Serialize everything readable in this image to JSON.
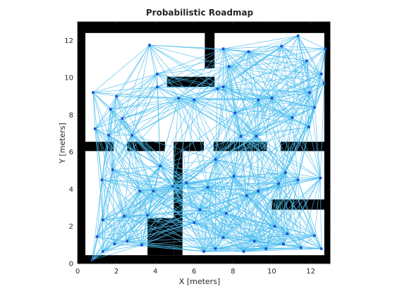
{
  "chart_data": {
    "type": "scatter",
    "title": "Probabilistic Roadmap",
    "xlabel": "X [meters]",
    "ylabel": "Y [meters]",
    "xlim": [
      0,
      13
    ],
    "ylim": [
      0,
      13
    ],
    "xticks": [
      0,
      2,
      4,
      6,
      8,
      10,
      12
    ],
    "yticks": [
      0,
      2,
      4,
      6,
      8,
      10,
      12
    ],
    "grid": false,
    "legend": "none",
    "colors": {
      "edges": "#4dbeee",
      "nodes": "#1f4fd1",
      "obstacles": "#000000",
      "axes": "#262626"
    },
    "obstacles": [
      {
        "x": 0.0,
        "y": 12.4,
        "w": 13.0,
        "h": 0.6
      },
      {
        "x": 0.0,
        "y": 0.0,
        "w": 0.4,
        "h": 13.0
      },
      {
        "x": 12.7,
        "y": 0.0,
        "w": 0.3,
        "h": 13.0
      },
      {
        "x": 0.0,
        "y": 0.0,
        "w": 13.0,
        "h": 0.45
      },
      {
        "x": 6.55,
        "y": 10.5,
        "w": 0.5,
        "h": 2.0
      },
      {
        "x": 4.6,
        "y": 9.5,
        "w": 2.45,
        "h": 0.55
      },
      {
        "x": 0.4,
        "y": 6.05,
        "w": 1.45,
        "h": 0.5
      },
      {
        "x": 2.55,
        "y": 6.05,
        "w": 1.95,
        "h": 0.5
      },
      {
        "x": 4.95,
        "y": 6.05,
        "w": 1.55,
        "h": 0.5
      },
      {
        "x": 7.0,
        "y": 6.05,
        "w": 2.75,
        "h": 0.5
      },
      {
        "x": 10.45,
        "y": 6.05,
        "w": 2.3,
        "h": 0.5
      },
      {
        "x": 4.95,
        "y": 0.45,
        "w": 0.45,
        "h": 5.6
      },
      {
        "x": 3.6,
        "y": 0.45,
        "w": 1.35,
        "h": 2.0
      },
      {
        "x": 10.0,
        "y": 2.9,
        "w": 2.75,
        "h": 0.55
      }
    ],
    "nodes": [
      [
        3.7,
        11.75
      ],
      [
        7.5,
        11.55
      ],
      [
        11.35,
        12.25
      ],
      [
        12.75,
        11.55
      ],
      [
        0.8,
        9.2
      ],
      [
        4.1,
        9.5
      ],
      [
        4.1,
        10.2
      ],
      [
        2.0,
        9.0
      ],
      [
        1.7,
        8.3
      ],
      [
        2.3,
        7.8
      ],
      [
        1.6,
        6.9
      ],
      [
        0.9,
        7.25
      ],
      [
        5.2,
        8.9
      ],
      [
        6.0,
        8.8
      ],
      [
        7.2,
        9.4
      ],
      [
        8.1,
        8.1
      ],
      [
        9.3,
        8.8
      ],
      [
        10.0,
        8.9
      ],
      [
        8.4,
        6.85
      ],
      [
        9.2,
        6.85
      ],
      [
        11.05,
        7.85
      ],
      [
        11.9,
        7.35
      ],
      [
        12.2,
        8.4
      ],
      [
        12.7,
        9.7
      ],
      [
        11.95,
        9.2
      ],
      [
        12.55,
        10.2
      ],
      [
        11.8,
        10.9
      ],
      [
        10.5,
        11.7
      ],
      [
        8.8,
        11.4
      ],
      [
        7.8,
        10.6
      ],
      [
        7.5,
        9.5
      ],
      [
        2.8,
        6.9
      ],
      [
        1.8,
        5.05
      ],
      [
        1.25,
        4.5
      ],
      [
        1.3,
        2.35
      ],
      [
        1.0,
        1.45
      ],
      [
        0.75,
        0.2
      ],
      [
        1.3,
        0.65
      ],
      [
        1.9,
        1.05
      ],
      [
        2.4,
        2.55
      ],
      [
        2.55,
        1.2
      ],
      [
        3.3,
        1.0
      ],
      [
        3.6,
        2.6
      ],
      [
        3.2,
        3.9
      ],
      [
        3.9,
        3.9
      ],
      [
        4.25,
        5.25
      ],
      [
        4.9,
        4.15
      ],
      [
        5.6,
        4.35
      ],
      [
        6.7,
        4.1
      ],
      [
        7.1,
        5.6
      ],
      [
        8.05,
        4.7
      ],
      [
        8.7,
        3.65
      ],
      [
        9.3,
        3.9
      ],
      [
        10.15,
        2.0
      ],
      [
        10.35,
        4.3
      ],
      [
        10.7,
        4.9
      ],
      [
        11.35,
        4.5
      ],
      [
        12.5,
        4.6
      ],
      [
        12.2,
        1.5
      ],
      [
        12.55,
        0.8
      ],
      [
        11.5,
        0.85
      ],
      [
        10.6,
        1.05
      ],
      [
        9.7,
        0.8
      ],
      [
        8.55,
        0.65
      ],
      [
        7.5,
        1.4
      ],
      [
        7.1,
        0.8
      ],
      [
        6.5,
        0.65
      ],
      [
        6.0,
        2.2
      ],
      [
        7.65,
        2.7
      ],
      [
        6.3,
        2.9
      ],
      [
        9.1,
        1.2
      ],
      [
        10.8,
        1.6
      ]
    ]
  }
}
